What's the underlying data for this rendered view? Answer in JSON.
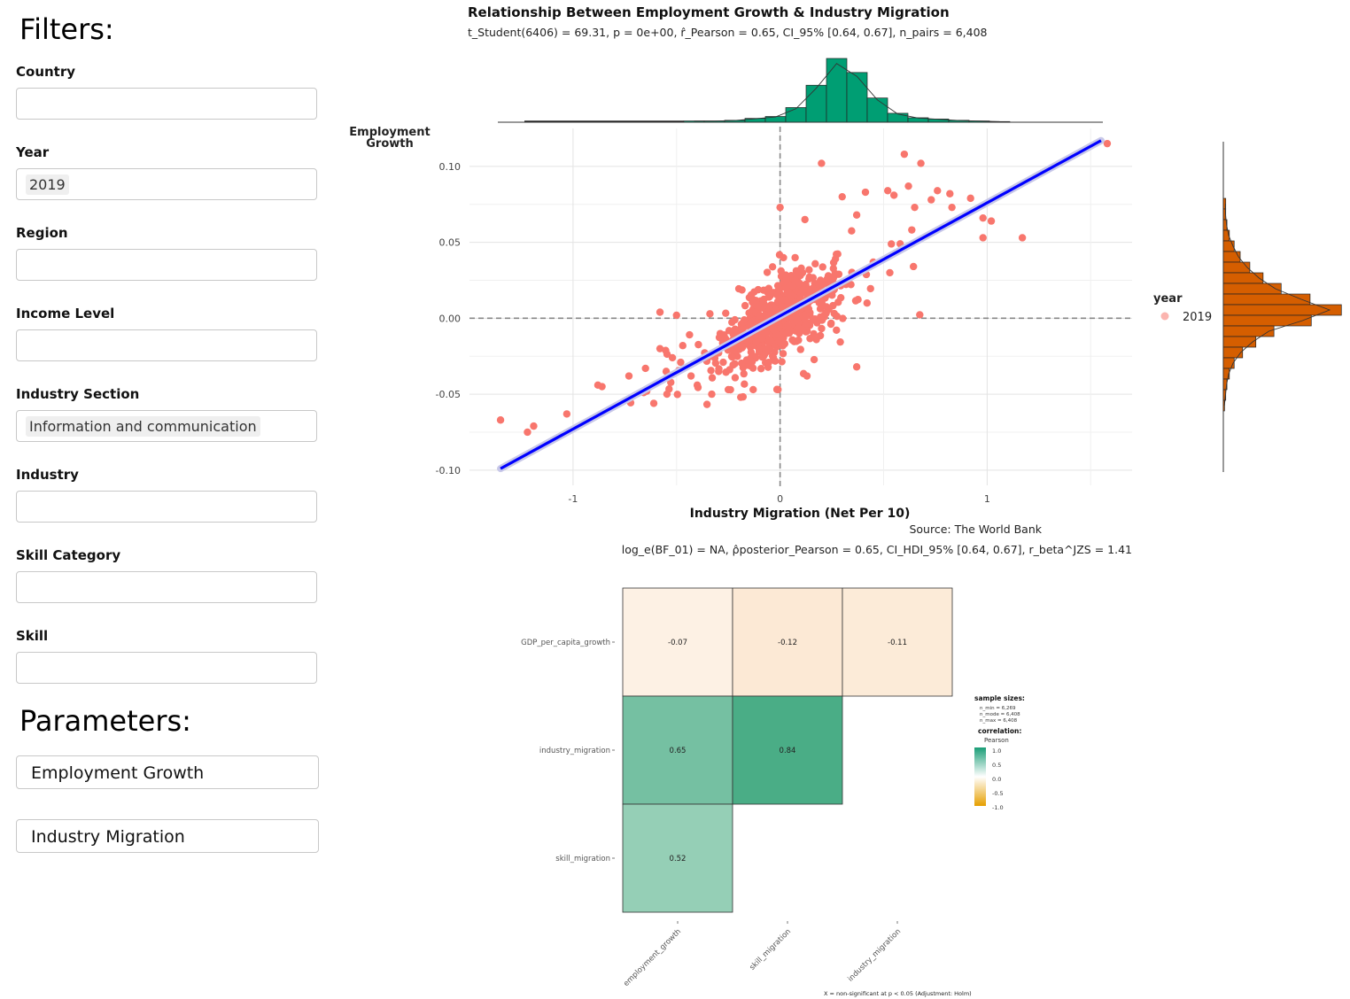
{
  "filters": {
    "heading": "Filters:",
    "fields": [
      {
        "label": "Country",
        "value": ""
      },
      {
        "label": "Year",
        "value": "2019"
      },
      {
        "label": "Region",
        "value": ""
      },
      {
        "label": "Income Level",
        "value": ""
      },
      {
        "label": "Industry Section",
        "value": "Information and communication"
      },
      {
        "label": "Industry",
        "value": ""
      },
      {
        "label": "Skill Category",
        "value": ""
      },
      {
        "label": "Skill",
        "value": ""
      }
    ]
  },
  "parameters": {
    "heading": "Parameters:",
    "items": [
      "Employment Growth",
      "Industry Migration"
    ]
  },
  "chart_data": [
    {
      "type": "scatter",
      "title": "Relationship Between Employment Growth & Industry Migration",
      "subtitle": "t_Student(6406) = 69.31, p = 0e+00, r̂_Pearson = 0.65, CI_95% [0.64, 0.67], n_pairs = 6,408",
      "xlabel": "Industry Migration (Net Per 10)",
      "ylabel": "Employment Growth",
      "xlim": [
        -1.5,
        1.7
      ],
      "ylim": [
        -0.11,
        0.125
      ],
      "xticks": [
        -1,
        0,
        1
      ],
      "yticks": [
        -0.1,
        -0.05,
        0.0,
        0.05,
        0.1
      ],
      "ytick_labels": [
        "-0.10",
        "-0.05",
        "0.00",
        "0.05",
        "0.10"
      ],
      "xtick_labels": [
        "-1",
        "0",
        "1"
      ],
      "grid": true,
      "legend": {
        "title": "year",
        "entries": [
          "2019"
        ],
        "placement": "right"
      },
      "series_color": "#f8766d",
      "fit_color": "#0000ff",
      "fit_line": {
        "x": [
          -1.35,
          1.55
        ],
        "y": [
          -0.099,
          0.117
        ]
      },
      "caption": "Source: The World Bank",
      "bayes_caption": "log_e(BF_01) = NA, ρ̂posterior_Pearson = 0.65, CI_HDI_95% [0.64, 0.67], r_beta^JZS = 1.41",
      "highlight_points": [
        {
          "x": -1.35,
          "y": -0.067
        },
        {
          "x": -1.22,
          "y": -0.075
        },
        {
          "x": -1.19,
          "y": -0.071
        },
        {
          "x": -1.03,
          "y": -0.063
        },
        {
          "x": -0.88,
          "y": -0.044
        },
        {
          "x": -0.86,
          "y": -0.045
        },
        {
          "x": -0.73,
          "y": -0.038
        },
        {
          "x": -0.65,
          "y": -0.033
        },
        {
          "x": -0.61,
          "y": -0.056
        },
        {
          "x": -0.58,
          "y": -0.02
        },
        {
          "x": -0.55,
          "y": -0.035
        },
        {
          "x": -0.52,
          "y": -0.026
        },
        {
          "x": -0.47,
          "y": -0.018
        },
        {
          "x": -0.5,
          "y": 0.002
        },
        {
          "x": -0.58,
          "y": 0.004
        },
        {
          "x": -0.43,
          "y": -0.038
        },
        {
          "x": -0.4,
          "y": -0.044
        },
        {
          "x": -0.33,
          "y": -0.05
        },
        {
          "x": -0.25,
          "y": -0.047
        },
        {
          "x": -0.19,
          "y": -0.052
        },
        {
          "x": -0.13,
          "y": -0.047
        },
        {
          "x": -0.01,
          "y": -0.047
        },
        {
          "x": 0.13,
          "y": -0.038
        },
        {
          "x": 0.37,
          "y": -0.032
        },
        {
          "x": 0.12,
          "y": 0.065
        },
        {
          "x": 0.0,
          "y": 0.073
        },
        {
          "x": 0.3,
          "y": 0.08
        },
        {
          "x": 0.55,
          "y": 0.081
        },
        {
          "x": 0.65,
          "y": 0.073
        },
        {
          "x": 0.73,
          "y": 0.078
        },
        {
          "x": 0.92,
          "y": 0.079
        },
        {
          "x": 0.98,
          "y": 0.066
        },
        {
          "x": 1.02,
          "y": 0.064
        },
        {
          "x": 1.17,
          "y": 0.053
        },
        {
          "x": 0.82,
          "y": 0.082
        },
        {
          "x": 0.76,
          "y": 0.084
        },
        {
          "x": 0.98,
          "y": 0.053
        },
        {
          "x": 0.83,
          "y": 0.073
        },
        {
          "x": 0.2,
          "y": 0.102
        },
        {
          "x": 0.6,
          "y": 0.108
        },
        {
          "x": 0.68,
          "y": 0.102
        },
        {
          "x": 0.52,
          "y": 0.084
        },
        {
          "x": 0.62,
          "y": 0.087
        },
        {
          "x": 0.37,
          "y": 0.068
        },
        {
          "x": 0.58,
          "y": 0.049
        },
        {
          "x": 0.45,
          "y": 0.037
        },
        {
          "x": 0.53,
          "y": 0.03
        },
        {
          "x": 0.42,
          "y": 0.01
        },
        {
          "x": 1.58,
          "y": 0.115
        }
      ]
    },
    {
      "type": "bar",
      "orientation": "vertical",
      "role": "marginal histogram of Industry Migration",
      "color": "#009e73",
      "values": [
        0.02,
        0.02,
        0.03,
        0.06,
        0.09,
        0.23,
        0.58,
        1.0,
        0.78,
        0.38,
        0.14,
        0.07,
        0.05,
        0.03,
        0.02,
        0.01
      ]
    },
    {
      "type": "bar",
      "orientation": "horizontal",
      "role": "marginal histogram of Employment Growth",
      "color": "#d55e00",
      "values": [
        0.02,
        0.02,
        0.03,
        0.05,
        0.09,
        0.14,
        0.22,
        0.33,
        0.48,
        0.72,
        0.98,
        0.73,
        0.42,
        0.27,
        0.16,
        0.09,
        0.05,
        0.03,
        0.02,
        0.01
      ]
    },
    {
      "type": "heatmap",
      "row_labels": [
        "GDP_per_capita_growth",
        "industry_migration",
        "skill_migration"
      ],
      "col_labels": [
        "employment_growth",
        "skill_migration",
        "industry_migration"
      ],
      "cells": [
        {
          "row": 0,
          "col": 0,
          "value": "-0.07",
          "color": "#fdf1e4"
        },
        {
          "row": 0,
          "col": 1,
          "value": "-0.12",
          "color": "#fce9d5"
        },
        {
          "row": 0,
          "col": 2,
          "value": "-0.11",
          "color": "#fcebd8"
        },
        {
          "row": 1,
          "col": 0,
          "value": "0.65",
          "color": "#75c0a2"
        },
        {
          "row": 1,
          "col": 1,
          "value": "0.84",
          "color": "#4aad86"
        },
        {
          "row": 2,
          "col": 0,
          "value": "0.52",
          "color": "#95cfb6"
        }
      ],
      "legend": {
        "sample_title": "sample sizes:",
        "n_min": "n_min = 6,269",
        "n_mode": "n_mode = 6,408",
        "n_max": "n_max = 6,408",
        "corr_title": "correlation:",
        "corr_method": "Pearson",
        "ticks": [
          "1.0",
          "0.5",
          "0.0",
          "-0.5",
          "-1.0"
        ],
        "colors": [
          "#1b9e77",
          "#ffffff",
          "#e69f00"
        ]
      },
      "footnote": "X = non-significant at p < 0.05 (Adjustment: Holm)"
    }
  ]
}
